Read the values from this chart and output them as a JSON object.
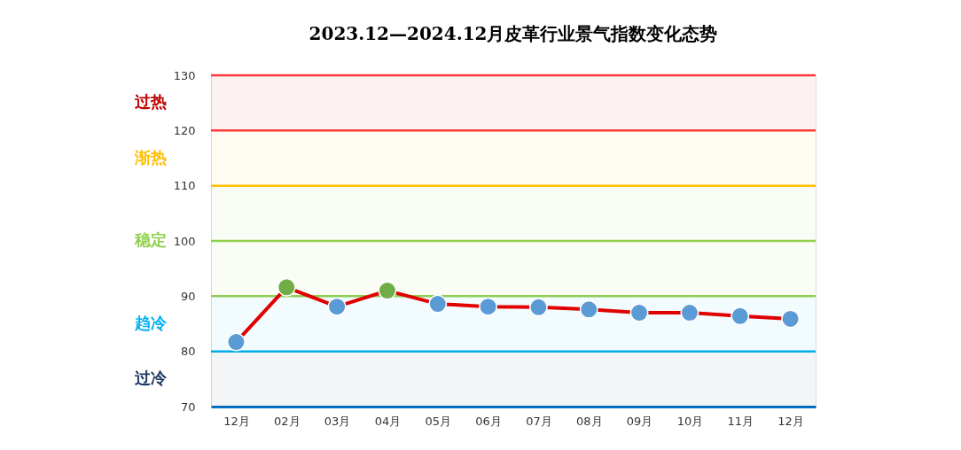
{
  "chart_data": {
    "type": "line",
    "title": "2023.12—2024.12月皮革行业景气指数变化态势",
    "categories": [
      "12月",
      "02月",
      "03月",
      "04月",
      "05月",
      "06月",
      "07月",
      "08月",
      "09月",
      "10月",
      "11月",
      "12月"
    ],
    "series": [
      {
        "color": "#e00000",
        "colors": [
          "#5b9bd5",
          "#70ad47",
          "#5b9bd5",
          "#70ad47",
          "#5b9bd5",
          "#5b9bd5",
          "#5b9bd5",
          "#5b9bd5",
          "#5b9bd5",
          "#5b9bd5",
          "#5b9bd5",
          "#5b9bd5"
        ],
        "values": [
          81.7,
          91.6,
          88.1,
          91.0,
          88.6,
          88.1,
          88.0,
          87.6,
          87.0,
          87.0,
          86.4,
          85.9
        ]
      }
    ],
    "ylim": [
      70,
      130
    ],
    "yticks": [
      70,
      80,
      90,
      100,
      110,
      120,
      130
    ],
    "ref_lines": [
      {
        "axis": "y",
        "value": 130,
        "color": "#ff3b3b"
      },
      {
        "axis": "y",
        "value": 120,
        "color": "#ff3b3b"
      },
      {
        "axis": "y",
        "value": 110,
        "color": "#ffc000"
      },
      {
        "axis": "y",
        "value": 100,
        "color": "#92d050"
      },
      {
        "axis": "y",
        "value": 90,
        "color": "#92d050"
      },
      {
        "axis": "y",
        "value": 80,
        "color": "#00b0f0"
      }
    ],
    "bands": [
      {
        "axis": "y",
        "from": 120,
        "to": 130,
        "label": "过热",
        "color": "#c00000"
      },
      {
        "axis": "y",
        "from": 110,
        "to": 120,
        "label": "渐热",
        "color": "#ffc000"
      },
      {
        "axis": "y",
        "from": 90,
        "to": 110,
        "label": "稳定",
        "color": "#92d050"
      },
      {
        "axis": "y",
        "from": 80,
        "to": 90,
        "label": "趋冷",
        "color": "#00b0f0"
      },
      {
        "axis": "y",
        "from": 70,
        "to": 80,
        "label": "过冷",
        "color": "#1f3864"
      }
    ],
    "marker": "circle",
    "line_style": "solid",
    "grid": false
  }
}
